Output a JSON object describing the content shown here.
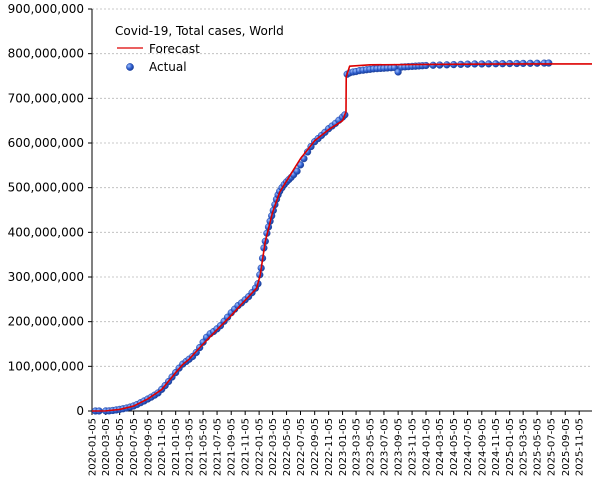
{
  "chart_data": {
    "type": "line",
    "title": "Covid-19, Total cases, World",
    "xlabel": "",
    "ylabel": "",
    "ylim": [
      0,
      900000000
    ],
    "yticks": [
      {
        "value": 0,
        "label": "0"
      },
      {
        "value": 100000000,
        "label": "100,000,000"
      },
      {
        "value": 200000000,
        "label": "200,000,000"
      },
      {
        "value": 300000000,
        "label": "300,000,000"
      },
      {
        "value": 400000000,
        "label": "400,000,000"
      },
      {
        "value": 500000000,
        "label": "500,000,000"
      },
      {
        "value": 600000000,
        "label": "600,000,000"
      },
      {
        "value": 700000000,
        "label": "700,000,000"
      },
      {
        "value": 800000000,
        "label": "800,000,000"
      },
      {
        "value": 900000000,
        "label": "900,000,000"
      }
    ],
    "xlim": [
      "2020-01-05",
      "2025-12-31"
    ],
    "xticks": [
      "2020-01-05",
      "2020-03-05",
      "2020-05-05",
      "2020-07-05",
      "2020-09-05",
      "2020-11-05",
      "2021-01-05",
      "2021-03-05",
      "2021-05-05",
      "2021-07-05",
      "2021-09-05",
      "2021-11-05",
      "2022-01-05",
      "2022-03-05",
      "2022-05-05",
      "2022-07-05",
      "2022-09-05",
      "2022-11-05",
      "2023-01-05",
      "2023-03-05",
      "2023-05-05",
      "2023-07-05",
      "2023-09-05",
      "2023-11-05",
      "2024-01-05",
      "2024-03-05",
      "2024-05-05",
      "2024-07-05",
      "2024-09-05",
      "2024-11-05",
      "2025-01-05",
      "2025-03-05",
      "2025-05-05",
      "2025-07-05",
      "2025-09-05",
      "2025-11-05"
    ],
    "grid": {
      "y": true,
      "x": false
    },
    "legend": {
      "placement": "top-left",
      "title": "Covid-19, Total cases, World"
    },
    "series": [
      {
        "name": "Forecast",
        "kind": "line",
        "color": "#dd0000",
        "points": [
          [
            "2020-01-05",
            0
          ],
          [
            "2020-03-05",
            300000
          ],
          [
            "2020-05-05",
            3500000
          ],
          [
            "2020-07-05",
            11000000
          ],
          [
            "2020-09-05",
            27000000
          ],
          [
            "2020-11-05",
            48000000
          ],
          [
            "2021-01-05",
            86000000
          ],
          [
            "2021-02-05",
            104000000
          ],
          [
            "2021-03-05",
            116000000
          ],
          [
            "2021-05-05",
            150000000
          ],
          [
            "2021-07-05",
            182000000
          ],
          [
            "2021-09-05",
            214000000
          ],
          [
            "2021-11-05",
            248000000
          ],
          [
            "2021-12-25",
            275000000
          ],
          [
            "2022-01-10",
            305000000
          ],
          [
            "2022-02-01",
            380000000
          ],
          [
            "2022-03-05",
            445000000
          ],
          [
            "2022-04-05",
            490000000
          ],
          [
            "2022-05-05",
            515000000
          ],
          [
            "2022-07-05",
            565000000
          ],
          [
            "2022-09-05",
            605000000
          ],
          [
            "2022-11-05",
            630000000
          ],
          [
            "2023-01-05",
            650000000
          ],
          [
            "2023-01-20",
            670000000
          ],
          [
            "2023-01-21",
            748000000
          ],
          [
            "2023-02-05",
            772000000
          ],
          [
            "2023-05-05",
            775000000
          ],
          [
            "2024-01-05",
            776000000
          ],
          [
            "2025-01-05",
            777000000
          ],
          [
            "2025-12-31",
            777000000
          ]
        ]
      },
      {
        "name": "Actual",
        "kind": "scatter",
        "color": "#2b55c8",
        "points": [
          [
            "2020-01-20",
            0
          ],
          [
            "2020-02-05",
            30000
          ],
          [
            "2020-03-05",
            100000
          ],
          [
            "2020-03-20",
            300000
          ],
          [
            "2020-04-05",
            1200000
          ],
          [
            "2020-04-20",
            2400000
          ],
          [
            "2020-05-05",
            3600000
          ],
          [
            "2020-05-20",
            5000000
          ],
          [
            "2020-06-05",
            6800000
          ],
          [
            "2020-06-20",
            8800000
          ],
          [
            "2020-07-05",
            11300000
          ],
          [
            "2020-07-20",
            14500000
          ],
          [
            "2020-08-05",
            18700000
          ],
          [
            "2020-08-20",
            22500000
          ],
          [
            "2020-09-05",
            26800000
          ],
          [
            "2020-09-20",
            31000000
          ],
          [
            "2020-10-05",
            35500000
          ],
          [
            "2020-10-20",
            40500000
          ],
          [
            "2020-11-05",
            48500000
          ],
          [
            "2020-11-20",
            57000000
          ],
          [
            "2020-12-05",
            66000000
          ],
          [
            "2020-12-20",
            76000000
          ],
          [
            "2021-01-05",
            86000000
          ],
          [
            "2021-01-20",
            96000000
          ],
          [
            "2021-02-05",
            105000000
          ],
          [
            "2021-02-20",
            111000000
          ],
          [
            "2021-03-05",
            116000000
          ],
          [
            "2021-03-20",
            122000000
          ],
          [
            "2021-04-05",
            131000000
          ],
          [
            "2021-04-20",
            142000000
          ],
          [
            "2021-05-05",
            154000000
          ],
          [
            "2021-05-20",
            165000000
          ],
          [
            "2021-06-05",
            173000000
          ],
          [
            "2021-06-20",
            178000000
          ],
          [
            "2021-07-05",
            184000000
          ],
          [
            "2021-07-20",
            191000000
          ],
          [
            "2021-08-05",
            201000000
          ],
          [
            "2021-08-20",
            210000000
          ],
          [
            "2021-09-05",
            220000000
          ],
          [
            "2021-09-20",
            228000000
          ],
          [
            "2021-10-05",
            236000000
          ],
          [
            "2021-10-20",
            242000000
          ],
          [
            "2021-11-05",
            249000000
          ],
          [
            "2021-11-20",
            256000000
          ],
          [
            "2021-12-05",
            265000000
          ],
          [
            "2021-12-20",
            275000000
          ],
          [
            "2021-12-31",
            285000000
          ],
          [
            "2022-01-08",
            305000000
          ],
          [
            "2022-01-14",
            320000000
          ],
          [
            "2022-01-20",
            342000000
          ],
          [
            "2022-01-26",
            365000000
          ],
          [
            "2022-02-01",
            380000000
          ],
          [
            "2022-02-08",
            398000000
          ],
          [
            "2022-02-15",
            412000000
          ],
          [
            "2022-02-22",
            425000000
          ],
          [
            "2022-03-01",
            437000000
          ],
          [
            "2022-03-08",
            449000000
          ],
          [
            "2022-03-15",
            462000000
          ],
          [
            "2022-03-22",
            474000000
          ],
          [
            "2022-03-29",
            484000000
          ],
          [
            "2022-04-05",
            492000000
          ],
          [
            "2022-04-15",
            500000000
          ],
          [
            "2022-04-25",
            507000000
          ],
          [
            "2022-05-05",
            513000000
          ],
          [
            "2022-05-15",
            518000000
          ],
          [
            "2022-05-25",
            523000000
          ],
          [
            "2022-06-05",
            529000000
          ],
          [
            "2022-06-20",
            537000000
          ],
          [
            "2022-07-05",
            551000000
          ],
          [
            "2022-07-20",
            565000000
          ],
          [
            "2022-08-05",
            580000000
          ],
          [
            "2022-08-20",
            592000000
          ],
          [
            "2022-09-05",
            603000000
          ],
          [
            "2022-09-20",
            610000000
          ],
          [
            "2022-10-05",
            617000000
          ],
          [
            "2022-10-20",
            624000000
          ],
          [
            "2022-11-05",
            632000000
          ],
          [
            "2022-11-20",
            638000000
          ],
          [
            "2022-12-05",
            644000000
          ],
          [
            "2022-12-20",
            651000000
          ],
          [
            "2023-01-05",
            658000000
          ],
          [
            "2023-01-15",
            663000000
          ],
          [
            "2023-01-25",
            754000000
          ],
          [
            "2023-02-05",
            757000000
          ],
          [
            "2023-02-20",
            759000000
          ],
          [
            "2023-03-05",
            760000000
          ],
          [
            "2023-03-20",
            762000000
          ],
          [
            "2023-04-05",
            763000000
          ],
          [
            "2023-04-20",
            764000000
          ],
          [
            "2023-05-05",
            765000000
          ],
          [
            "2023-05-20",
            766000000
          ],
          [
            "2023-06-05",
            766500000
          ],
          [
            "2023-06-20",
            767000000
          ],
          [
            "2023-07-05",
            767500000
          ],
          [
            "2023-07-20",
            768000000
          ],
          [
            "2023-08-05",
            768500000
          ],
          [
            "2023-08-20",
            769000000
          ],
          [
            "2023-09-05",
            759000000
          ],
          [
            "2023-09-20",
            770000000
          ],
          [
            "2023-10-05",
            770500000
          ],
          [
            "2023-10-20",
            771000000
          ],
          [
            "2023-11-05",
            771500000
          ],
          [
            "2023-11-20",
            772000000
          ],
          [
            "2023-12-05",
            772500000
          ],
          [
            "2023-12-20",
            773000000
          ],
          [
            "2024-01-05",
            773500000
          ],
          [
            "2024-02-05",
            774000000
          ],
          [
            "2024-03-05",
            774500000
          ],
          [
            "2024-04-05",
            775000000
          ],
          [
            "2024-05-05",
            775500000
          ],
          [
            "2024-06-05",
            776000000
          ],
          [
            "2024-07-05",
            776500000
          ],
          [
            "2024-08-05",
            777000000
          ],
          [
            "2024-09-05",
            777000000
          ],
          [
            "2024-10-05",
            777200000
          ],
          [
            "2024-11-05",
            777400000
          ],
          [
            "2024-12-05",
            777600000
          ],
          [
            "2025-01-05",
            777800000
          ],
          [
            "2025-02-05",
            778000000
          ],
          [
            "2025-03-05",
            778200000
          ],
          [
            "2025-04-05",
            778400000
          ],
          [
            "2025-05-05",
            778600000
          ],
          [
            "2025-06-05",
            778800000
          ],
          [
            "2025-06-25",
            779000000
          ]
        ]
      }
    ]
  }
}
